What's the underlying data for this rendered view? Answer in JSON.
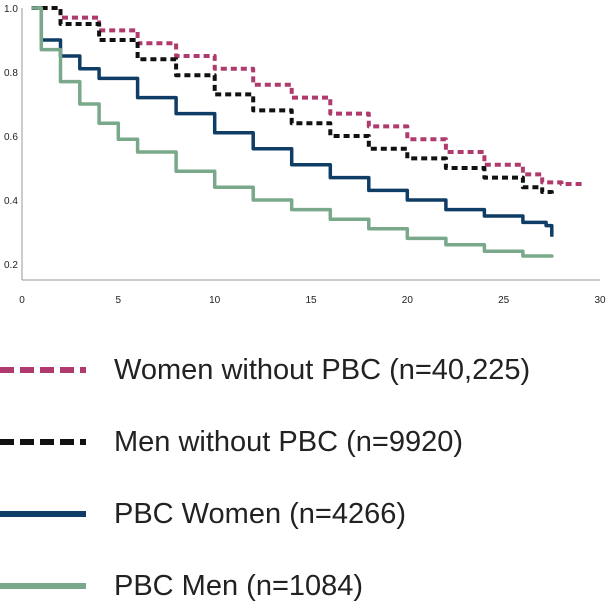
{
  "chart_data": {
    "type": "line",
    "title": "",
    "xlabel": "",
    "ylabel": "",
    "xlim": [
      0,
      30
    ],
    "ylim": [
      0.15,
      1.0
    ],
    "x_ticks": [
      0,
      5,
      10,
      15,
      20,
      25,
      30
    ],
    "y_ticks": [
      0.2,
      0.4,
      0.6,
      0.8,
      1.0
    ],
    "x_tick_labels": [
      "0",
      "5",
      "10",
      "15",
      "20",
      "25",
      "30"
    ],
    "y_tick_labels": [
      "0.2",
      "0.4",
      "0.6",
      "0.8",
      "1.0"
    ],
    "grid": false,
    "legend_position": "bottom",
    "series": [
      {
        "name": "Women without PBC (n=40,225)",
        "color": "#b03a6e",
        "style": "dashed",
        "points": [
          [
            0.5,
            1.0
          ],
          [
            2,
            0.97
          ],
          [
            4,
            0.93
          ],
          [
            6,
            0.89
          ],
          [
            8,
            0.85
          ],
          [
            10,
            0.81
          ],
          [
            12,
            0.76
          ],
          [
            14,
            0.72
          ],
          [
            16,
            0.67
          ],
          [
            18,
            0.63
          ],
          [
            20,
            0.59
          ],
          [
            22,
            0.55
          ],
          [
            24,
            0.51
          ],
          [
            26,
            0.48
          ],
          [
            27,
            0.455
          ],
          [
            28,
            0.45
          ],
          [
            29.2,
            0.45
          ]
        ]
      },
      {
        "name": "Men without PBC (n=9920)",
        "color": "#111111",
        "style": "dashed",
        "points": [
          [
            0.5,
            1.0
          ],
          [
            2,
            0.95
          ],
          [
            4,
            0.9
          ],
          [
            6,
            0.84
          ],
          [
            8,
            0.79
          ],
          [
            10,
            0.73
          ],
          [
            12,
            0.68
          ],
          [
            14,
            0.64
          ],
          [
            16,
            0.6
          ],
          [
            18,
            0.56
          ],
          [
            20,
            0.53
          ],
          [
            22,
            0.5
          ],
          [
            24,
            0.47
          ],
          [
            26,
            0.44
          ],
          [
            27,
            0.425
          ],
          [
            27.5,
            0.42
          ]
        ]
      },
      {
        "name": "PBC Women (n=4266)",
        "color": "#0f3d66",
        "style": "solid",
        "points": [
          [
            0.5,
            1.0
          ],
          [
            1,
            0.9
          ],
          [
            2,
            0.85
          ],
          [
            3,
            0.81
          ],
          [
            4,
            0.78
          ],
          [
            6,
            0.72
          ],
          [
            8,
            0.67
          ],
          [
            10,
            0.61
          ],
          [
            12,
            0.56
          ],
          [
            14,
            0.51
          ],
          [
            16,
            0.47
          ],
          [
            18,
            0.43
          ],
          [
            20,
            0.4
          ],
          [
            22,
            0.37
          ],
          [
            24,
            0.35
          ],
          [
            26,
            0.33
          ],
          [
            27.2,
            0.32
          ],
          [
            27.5,
            0.285
          ]
        ]
      },
      {
        "name": "PBC Men (n=1084)",
        "color": "#7aa88a",
        "style": "solid",
        "points": [
          [
            0.5,
            1.0
          ],
          [
            1,
            0.87
          ],
          [
            2,
            0.77
          ],
          [
            3,
            0.7
          ],
          [
            4,
            0.64
          ],
          [
            5,
            0.59
          ],
          [
            6,
            0.55
          ],
          [
            8,
            0.49
          ],
          [
            10,
            0.44
          ],
          [
            12,
            0.4
          ],
          [
            14,
            0.37
          ],
          [
            16,
            0.34
          ],
          [
            18,
            0.31
          ],
          [
            20,
            0.28
          ],
          [
            22,
            0.26
          ],
          [
            24,
            0.24
          ],
          [
            26,
            0.225
          ],
          [
            27.5,
            0.22
          ]
        ]
      }
    ]
  }
}
